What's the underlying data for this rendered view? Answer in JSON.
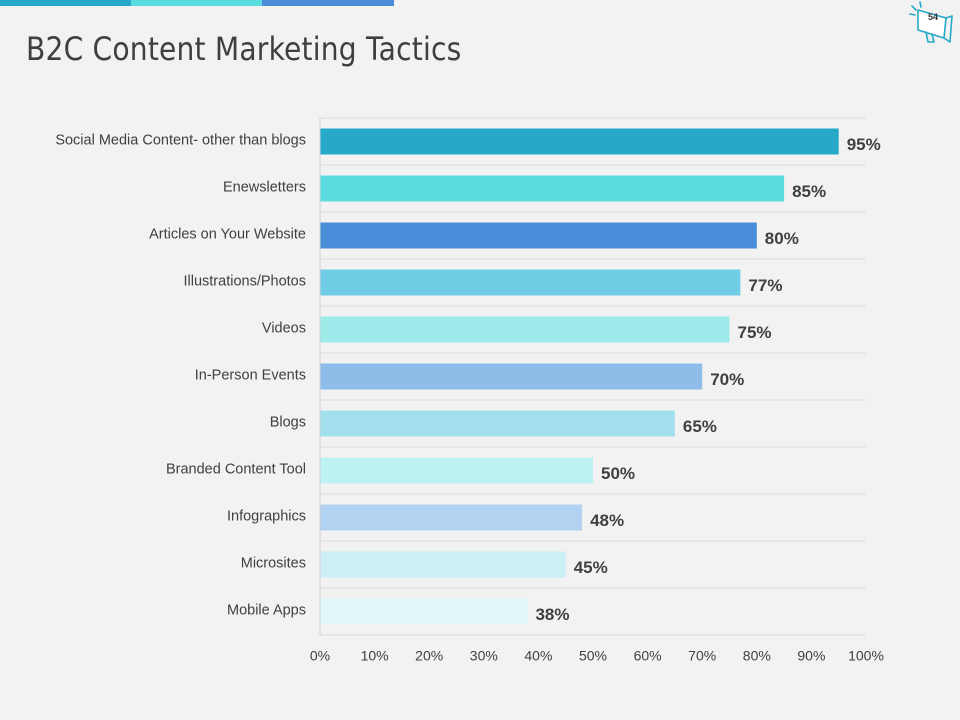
{
  "slide": {
    "title": "B2C Content Marketing Tactics",
    "page_number": "54",
    "icon": "megaphone-icon",
    "topbar_colors": [
      "#26a9c8",
      "#5bdde0",
      "#4a8ed9"
    ]
  },
  "chart_data": {
    "type": "bar",
    "orientation": "horizontal",
    "categories": [
      "Social Media Content- other than blogs",
      "Enewsletters",
      "Articles on Your Website",
      "Illustrations/Photos",
      "Videos",
      "In-Person Events",
      "Blogs",
      "Branded Content Tool",
      "Infographics",
      "Microsites",
      "Mobile Apps"
    ],
    "values": [
      95,
      85,
      80,
      77,
      75,
      70,
      65,
      50,
      48,
      45,
      38
    ],
    "data_labels": [
      "95%",
      "85%",
      "80%",
      "77%",
      "75%",
      "70%",
      "65%",
      "50%",
      "48%",
      "45%",
      "38%"
    ],
    "colors": [
      "#26a9c8",
      "#5bdde0",
      "#4a8ed9",
      "#70cde6",
      "#9deaeb",
      "#8fbde9",
      "#a3e0ee",
      "#bdf1f2",
      "#b1d2f0",
      "#cceef5",
      "#dff7f9"
    ],
    "xlim": [
      0,
      100
    ],
    "x_ticks": [
      0,
      10,
      20,
      30,
      40,
      50,
      60,
      70,
      80,
      90,
      100
    ],
    "x_tick_labels": [
      "0%",
      "10%",
      "20%",
      "30%",
      "40%",
      "50%",
      "60%",
      "70%",
      "80%",
      "90%",
      "100%"
    ],
    "grid": true,
    "legend": "none"
  }
}
